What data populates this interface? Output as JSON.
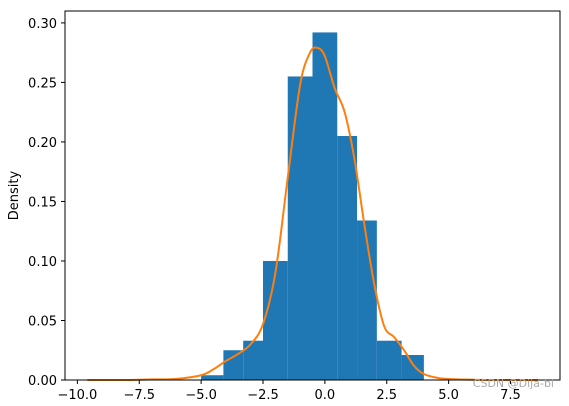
{
  "chart_data": {
    "type": "bar",
    "title": "",
    "xlabel": "",
    "ylabel": "Density",
    "xlim": [
      -10.5,
      9.5
    ],
    "ylim": [
      0,
      0.31
    ],
    "xticks": [
      -10.0,
      -7.5,
      -5.0,
      -2.5,
      0.0,
      2.5,
      5.0,
      7.5
    ],
    "xtick_labels": [
      "−10.0",
      "−7.5",
      "−5.0",
      "−2.5",
      "0.0",
      "2.5",
      "5.0",
      "7.5"
    ],
    "yticks": [
      0.0,
      0.05,
      0.1,
      0.15,
      0.2,
      0.25,
      0.3
    ],
    "ytick_labels": [
      "0.00",
      "0.05",
      "0.10",
      "0.15",
      "0.20",
      "0.25",
      "0.30"
    ],
    "grid": false,
    "histogram": {
      "name": "histogram",
      "color": "#1f77b4",
      "bin_edges": [
        -5.0,
        -4.1,
        -3.3,
        -2.5,
        -1.5,
        -0.5,
        0.5,
        1.3,
        2.1,
        3.1,
        4.0
      ],
      "densities": [
        0.004,
        0.025,
        0.033,
        0.1,
        0.255,
        0.292,
        0.205,
        0.134,
        0.033,
        0.021
      ]
    },
    "kde": {
      "name": "kde",
      "color": "#ff7f0e",
      "x": [
        -9.6,
        -8.0,
        -7.0,
        -6.0,
        -5.0,
        -4.5,
        -4.0,
        -3.5,
        -3.0,
        -2.5,
        -2.0,
        -1.5,
        -1.0,
        -0.6,
        -0.3,
        0.0,
        0.4,
        0.8,
        1.2,
        1.6,
        2.0,
        2.4,
        2.8,
        3.2,
        3.6,
        4.0,
        4.5,
        5.0,
        6.0,
        7.0,
        8.0,
        8.6
      ],
      "y": [
        0.0,
        0.0,
        0.0005,
        0.001,
        0.004,
        0.009,
        0.016,
        0.022,
        0.03,
        0.047,
        0.09,
        0.17,
        0.248,
        0.275,
        0.279,
        0.272,
        0.245,
        0.225,
        0.185,
        0.13,
        0.08,
        0.045,
        0.036,
        0.025,
        0.012,
        0.005,
        0.002,
        0.0008,
        0.0002,
        0.0,
        0.0,
        0.0
      ]
    }
  },
  "watermark": "CSDN @Dija-bl"
}
